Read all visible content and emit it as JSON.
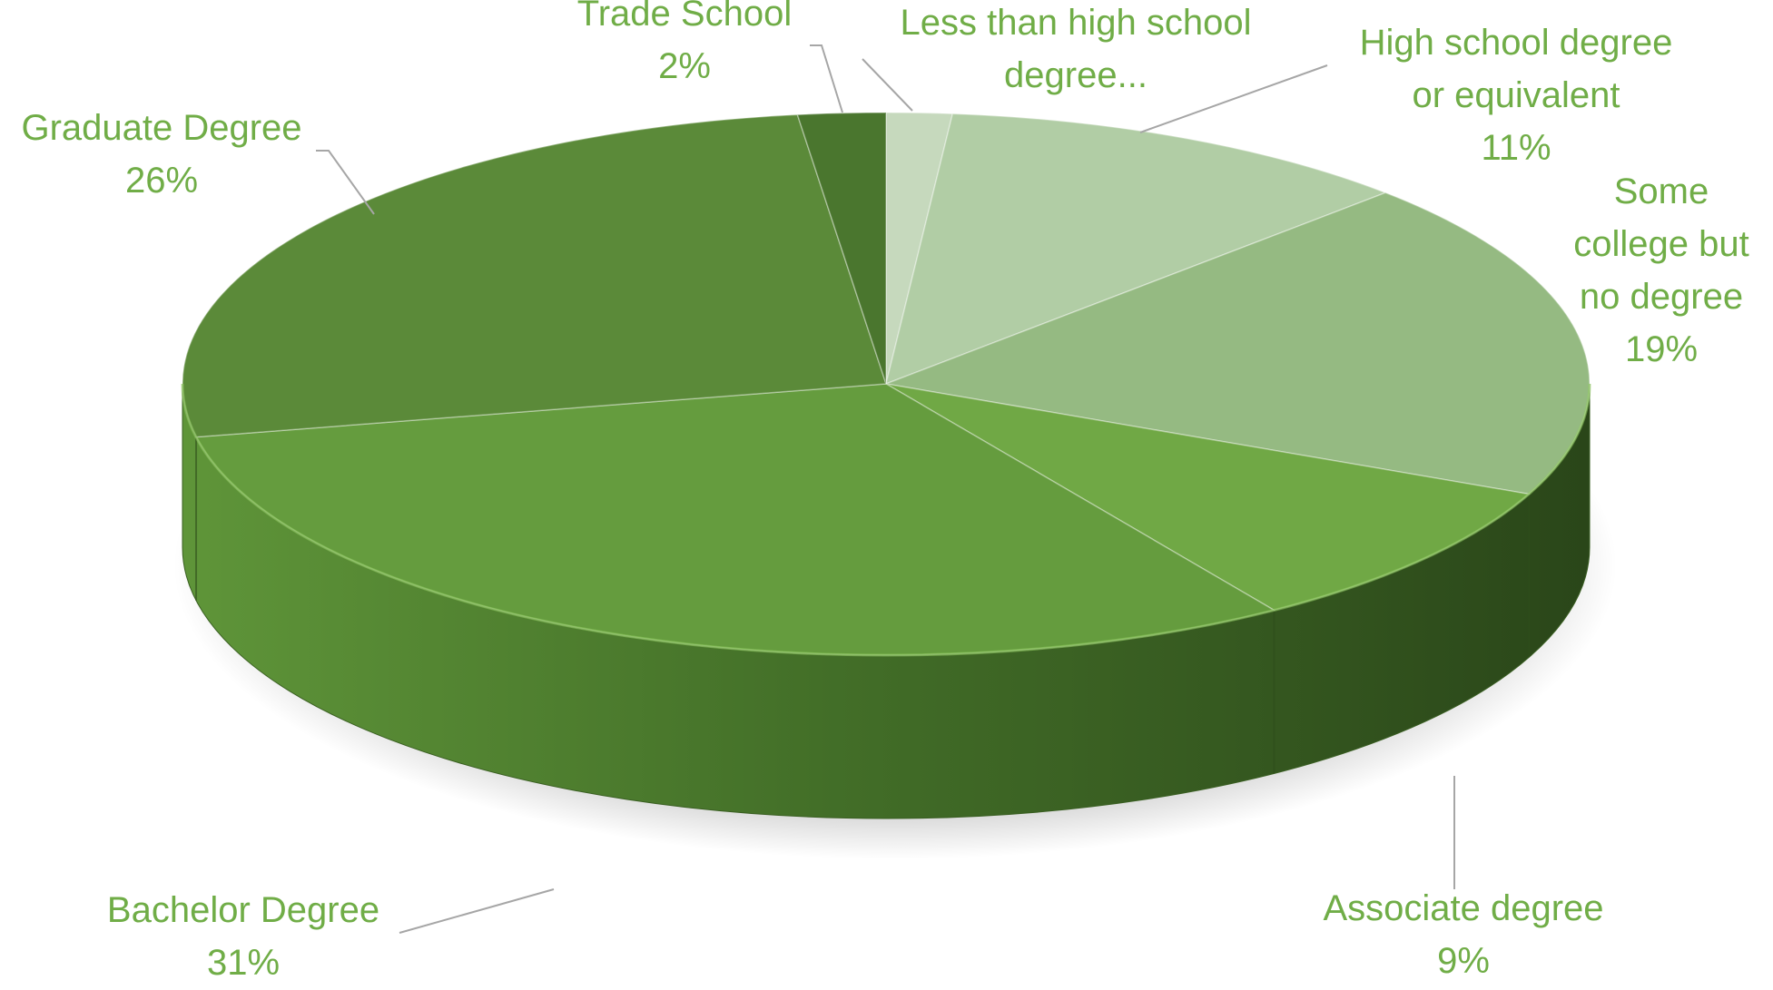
{
  "chart_data": {
    "type": "pie",
    "title": "",
    "slices": [
      {
        "label": "Less than high school degree...",
        "label_lines": [
          "Less than high school",
          "degree..."
        ],
        "value_label": "",
        "value": 1.5,
        "color": "#c6d9bd"
      },
      {
        "label": "High school degree or equivalent",
        "label_lines": [
          "High school degree",
          "or equivalent"
        ],
        "value_label": "11%",
        "value": 11,
        "color": "#b1cda5"
      },
      {
        "label": "Some college but no degree",
        "label_lines": [
          "Some",
          "college but",
          "no degree"
        ],
        "value_label": "19%",
        "value": 19,
        "color": "#95ba82"
      },
      {
        "label": "Associate degree",
        "label_lines": [
          "Associate degree"
        ],
        "value_label": "9%",
        "value": 9,
        "color": "#70a845"
      },
      {
        "label": "Bachelor Degree",
        "label_lines": [
          "Bachelor Degree"
        ],
        "value_label": "31%",
        "value": 31,
        "color": "#659c3e"
      },
      {
        "label": "Graduate Degree",
        "label_lines": [
          "Graduate Degree"
        ],
        "value_label": "26%",
        "value": 26,
        "color": "#5b8a39"
      },
      {
        "label": "Trade School",
        "label_lines": [
          "Trade School"
        ],
        "value_label": "2%",
        "value": 2,
        "color": "#4a762e"
      }
    ],
    "label_color": "#70ad47",
    "leader_color": "#a6a6a6",
    "style": "3d-pie",
    "legend": "none"
  }
}
